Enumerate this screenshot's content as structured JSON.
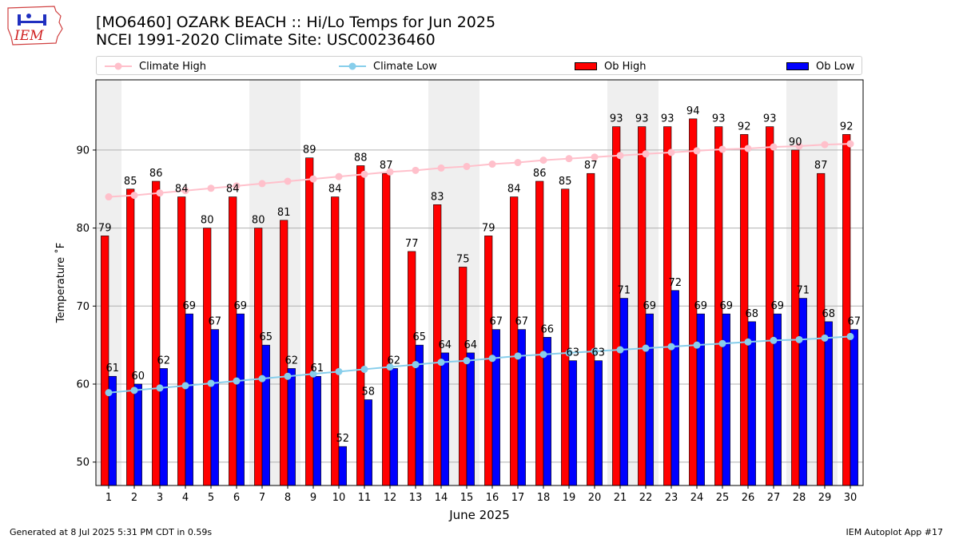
{
  "header": {
    "title_line1": "[MO6460] OZARK BEACH :: Hi/Lo Temps for Jun 2025",
    "title_line2": "NCEI 1991-2020 Climate Site: USC00236460",
    "logo_text": "IEM"
  },
  "legend": {
    "climate_high": "Climate High",
    "climate_low": "Climate Low",
    "ob_high": "Ob High",
    "ob_low": "Ob Low"
  },
  "footer": {
    "generated": "Generated at 8 Jul 2025 5:31 PM CDT in 0.59s",
    "app": "IEM Autoplot App #17"
  },
  "colors": {
    "ob_high": "#ff0000",
    "ob_low": "#0000ff",
    "climate_high": "#ffc0cb",
    "climate_low": "#87ceeb",
    "weekend_band": "#efefef",
    "grid": "#b0b0b0"
  },
  "chart_data": {
    "type": "bar",
    "xlabel": "June 2025",
    "ylabel": "Temperature ˚F",
    "ylim": [
      47,
      99
    ],
    "yticks": [
      50,
      60,
      70,
      80,
      90
    ],
    "grid": "horizontal",
    "legend_position": "top",
    "categories": [
      "1",
      "2",
      "3",
      "4",
      "5",
      "6",
      "7",
      "8",
      "9",
      "10",
      "11",
      "12",
      "13",
      "14",
      "15",
      "16",
      "17",
      "18",
      "19",
      "20",
      "21",
      "22",
      "23",
      "24",
      "25",
      "26",
      "27",
      "28",
      "29",
      "30"
    ],
    "shaded_days": [
      1,
      7,
      8,
      14,
      15,
      21,
      22,
      28,
      29
    ],
    "series": [
      {
        "name": "Ob High",
        "kind": "bar",
        "values": [
          79,
          85,
          86,
          84,
          80,
          84,
          80,
          81,
          89,
          84,
          88,
          87,
          77,
          83,
          75,
          79,
          84,
          86,
          85,
          87,
          93,
          93,
          93,
          94,
          93,
          92,
          93,
          90,
          87,
          92
        ]
      },
      {
        "name": "Ob Low",
        "kind": "bar",
        "values": [
          61,
          60,
          62,
          69,
          67,
          69,
          65,
          62,
          61,
          52,
          58,
          62,
          65,
          64,
          64,
          67,
          67,
          66,
          63,
          63,
          71,
          69,
          72,
          69,
          69,
          68,
          69,
          71,
          68,
          67
        ]
      },
      {
        "name": "Climate High",
        "kind": "line",
        "values": [
          84.0,
          84.2,
          84.5,
          84.8,
          85.1,
          85.4,
          85.7,
          86.0,
          86.3,
          86.6,
          86.9,
          87.2,
          87.4,
          87.7,
          87.9,
          88.2,
          88.4,
          88.7,
          88.9,
          89.1,
          89.3,
          89.5,
          89.7,
          89.9,
          90.1,
          90.2,
          90.4,
          90.5,
          90.7,
          90.8
        ]
      },
      {
        "name": "Climate Low",
        "kind": "line",
        "values": [
          58.9,
          59.2,
          59.5,
          59.8,
          60.1,
          60.4,
          60.7,
          61.0,
          61.3,
          61.6,
          61.9,
          62.2,
          62.5,
          62.8,
          63.0,
          63.3,
          63.6,
          63.8,
          64.0,
          64.2,
          64.4,
          64.6,
          64.8,
          65.0,
          65.2,
          65.4,
          65.6,
          65.7,
          65.9,
          66.1
        ]
      }
    ]
  }
}
